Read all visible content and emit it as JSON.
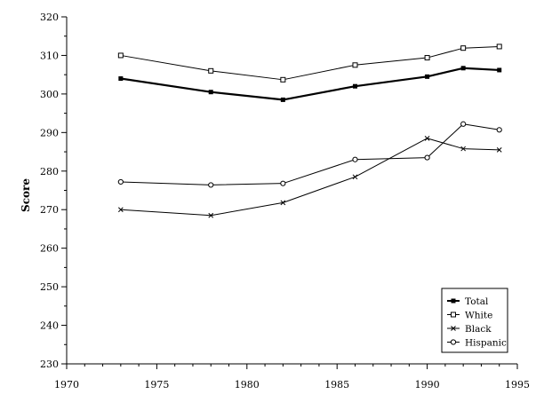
{
  "chart_data": {
    "type": "line",
    "ylabel": "Score",
    "xlabel": "",
    "xlim": [
      1970,
      1995
    ],
    "ylim": [
      230,
      320
    ],
    "xticks": [
      1970,
      1975,
      1980,
      1985,
      1990,
      1995
    ],
    "yticks": [
      230,
      240,
      250,
      260,
      270,
      280,
      290,
      300,
      310,
      320
    ],
    "x": [
      1973,
      1978,
      1982,
      1986,
      1990,
      1992,
      1994
    ],
    "grid": false,
    "legend_position": "bottom-right",
    "series": [
      {
        "name": "Total",
        "marker": "filled-square",
        "bold": true,
        "values": [
          304,
          300.5,
          298.5,
          302,
          304.5,
          306.7,
          306.2
        ]
      },
      {
        "name": "White",
        "marker": "open-square",
        "bold": false,
        "values": [
          310,
          306,
          303.7,
          307.5,
          309.4,
          311.9,
          312.3
        ]
      },
      {
        "name": "Black",
        "marker": "x",
        "bold": false,
        "values": [
          270,
          268.5,
          271.8,
          278.5,
          288.5,
          285.8,
          285.5
        ]
      },
      {
        "name": "Hispanic",
        "marker": "open-circle",
        "bold": false,
        "values": [
          277.2,
          276.4,
          276.8,
          283,
          283.5,
          292.2,
          290.7
        ]
      }
    ]
  }
}
